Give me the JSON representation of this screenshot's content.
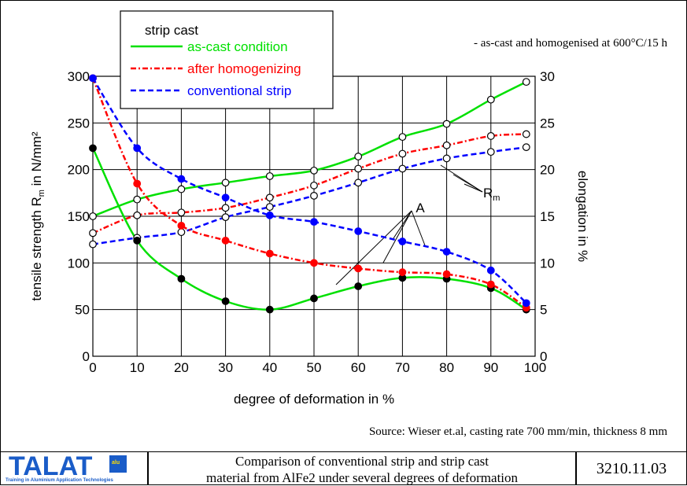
{
  "chart_data": {
    "type": "line",
    "xlabel": "degree of deformation in %",
    "ylabel": "tensile strength R_m in N/mm²",
    "y2label": "elongation in %",
    "x_ticks": [
      "0",
      "10",
      "20",
      "30",
      "40",
      "50",
      "60",
      "70",
      "80",
      "90",
      "100"
    ],
    "y_ticks": [
      "0",
      "50",
      "100",
      "150",
      "200",
      "250",
      "300"
    ],
    "y2_ticks": [
      "0",
      "5",
      "10",
      "15",
      "20",
      "25",
      "30"
    ],
    "xlim": [
      0,
      100
    ],
    "ylim": [
      0,
      300
    ],
    "y2lim": [
      0,
      30
    ],
    "grid": true,
    "legend": {
      "position": "top-left",
      "title": "strip cast",
      "entries": [
        {
          "label": "as-cast condition",
          "color": "#00e000",
          "style": "solid"
        },
        {
          "label": "after homogenizing",
          "color": "#ff0000",
          "style": "dash-dot"
        },
        {
          "label": "conventional strip",
          "color": "#0000ff",
          "style": "dashed"
        }
      ]
    },
    "annotations": {
      "note": "- as-cast and homogenised at 600°C/15 h",
      "rm_label": "R",
      "rm_sub": "m",
      "a_label": "A",
      "source": "Source: Wieser et.al, casting rate 700 mm/min, thickness 8 mm"
    },
    "series": [
      {
        "name": "as-cast condition",
        "quantity": "tensile strength",
        "color": "#00e000",
        "style": "solid",
        "marker": "open",
        "x": [
          0,
          10,
          20,
          30,
          40,
          50,
          60,
          70,
          80,
          90,
          98
        ],
        "y": [
          150,
          168,
          179,
          186,
          193,
          199,
          214,
          235,
          249,
          275,
          294
        ]
      },
      {
        "name": "after homogenizing",
        "quantity": "tensile strength",
        "color": "#ff0000",
        "style": "dash-dot",
        "marker": "open",
        "x": [
          0,
          10,
          20,
          30,
          40,
          50,
          60,
          70,
          80,
          90,
          98
        ],
        "y": [
          132,
          151,
          154,
          159,
          170,
          183,
          201,
          217,
          226,
          236,
          238
        ]
      },
      {
        "name": "conventional strip",
        "quantity": "tensile strength",
        "color": "#0000ff",
        "style": "dashed",
        "marker": "open",
        "x": [
          0,
          10,
          20,
          30,
          40,
          50,
          60,
          70,
          80,
          90,
          98
        ],
        "y": [
          120,
          127,
          133,
          149,
          160,
          172,
          186,
          201,
          212,
          219,
          224
        ]
      },
      {
        "name": "as-cast condition",
        "quantity": "elongation",
        "color": "#00e000",
        "style": "solid",
        "marker": "filled",
        "x": [
          0,
          10,
          20,
          30,
          40,
          50,
          60,
          70,
          80,
          90,
          98
        ],
        "y": [
          22.3,
          12.4,
          8.3,
          5.9,
          5.0,
          6.2,
          7.5,
          8.4,
          8.3,
          7.3,
          5.0
        ]
      },
      {
        "name": "after homogenizing",
        "quantity": "elongation",
        "color": "#ff0000",
        "style": "dash-dot",
        "marker": "filled",
        "x": [
          0,
          10,
          20,
          30,
          40,
          50,
          60,
          70,
          80,
          90,
          98
        ],
        "y": [
          29.8,
          18.5,
          14.0,
          12.4,
          11.0,
          10.0,
          9.4,
          9.0,
          8.8,
          7.7,
          5.2
        ]
      },
      {
        "name": "conventional strip",
        "quantity": "elongation",
        "color": "#0000ff",
        "style": "dashed",
        "marker": "filled",
        "x": [
          0,
          10,
          20,
          30,
          40,
          50,
          60,
          70,
          80,
          90,
          98
        ],
        "y": [
          29.8,
          22.3,
          19.0,
          17.0,
          15.1,
          14.4,
          13.4,
          12.3,
          11.2,
          9.2,
          5.7
        ]
      }
    ]
  },
  "footer": {
    "logo": "TALAT",
    "logo_sub": "Training in Aluminium Application Technologies",
    "logo_flag": "alu",
    "caption_line1": "Comparison of conventional strip and strip cast",
    "caption_line2": "material from AlFe2 under several degrees of deformation",
    "code": "3210.11.03"
  }
}
